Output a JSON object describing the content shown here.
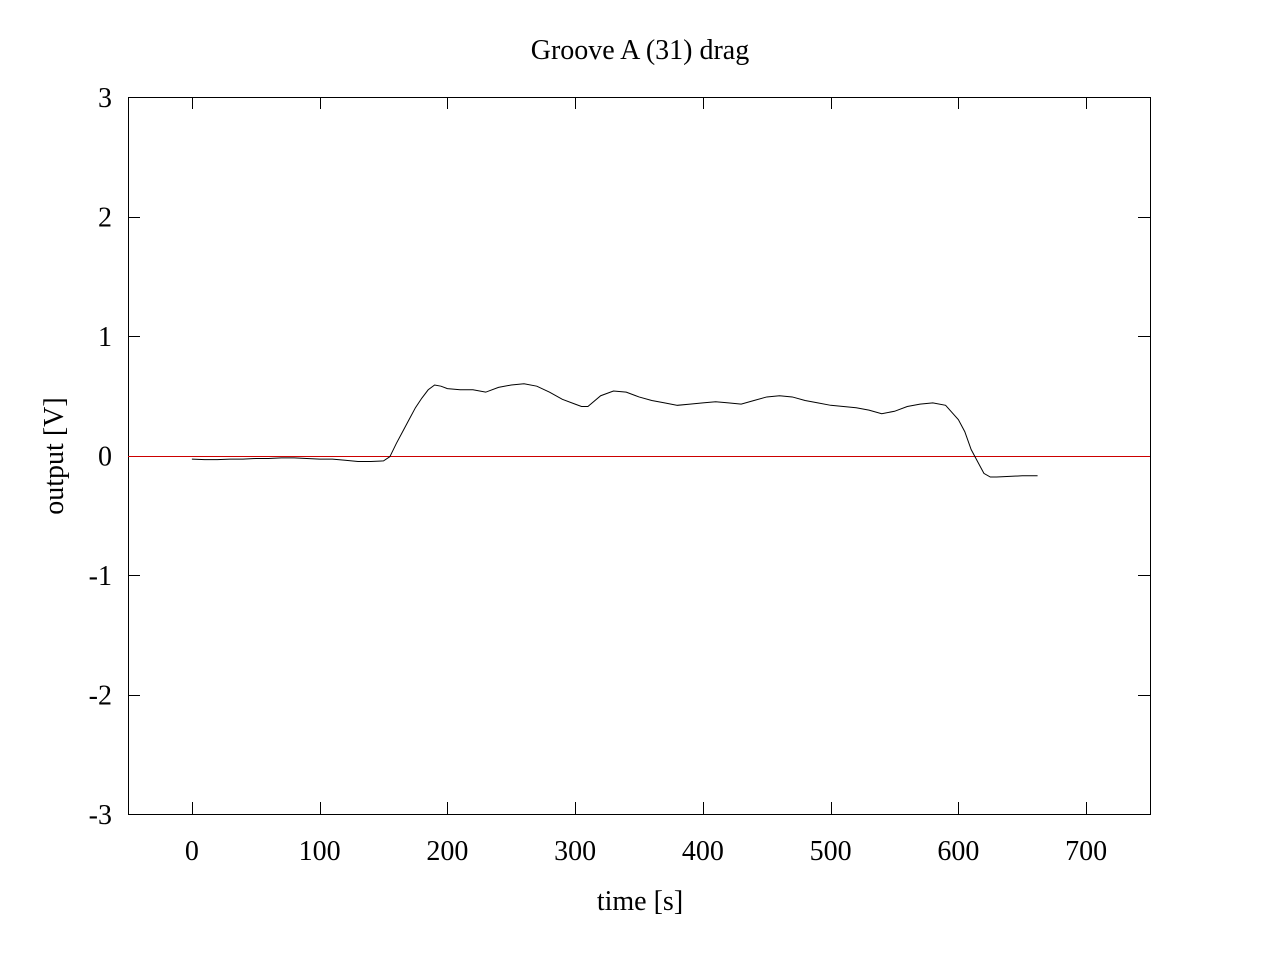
{
  "chart_data": {
    "type": "line",
    "title": "Groove A (31) drag",
    "xlabel": "time [s]",
    "ylabel": "output [V]",
    "xlim": [
      -50,
      750
    ],
    "ylim": [
      -3,
      3
    ],
    "x_ticks": [
      0,
      100,
      200,
      300,
      400,
      500,
      600,
      700
    ],
    "y_ticks": [
      -3,
      -2,
      -1,
      0,
      1,
      2,
      3
    ],
    "grid": false,
    "legend": "none",
    "reference_line": {
      "y": 0,
      "color": "#cc0000"
    },
    "series": [
      {
        "color": "#000000",
        "points": [
          [
            0,
            -0.03
          ],
          [
            10,
            -0.035
          ],
          [
            20,
            -0.035
          ],
          [
            30,
            -0.03
          ],
          [
            40,
            -0.03
          ],
          [
            50,
            -0.025
          ],
          [
            60,
            -0.025
          ],
          [
            70,
            -0.02
          ],
          [
            80,
            -0.02
          ],
          [
            90,
            -0.025
          ],
          [
            100,
            -0.03
          ],
          [
            110,
            -0.03
          ],
          [
            120,
            -0.04
          ],
          [
            130,
            -0.05
          ],
          [
            140,
            -0.05
          ],
          [
            150,
            -0.045
          ],
          [
            155,
            -0.01
          ],
          [
            160,
            0.1
          ],
          [
            165,
            0.2
          ],
          [
            170,
            0.3
          ],
          [
            175,
            0.4
          ],
          [
            180,
            0.48
          ],
          [
            185,
            0.55
          ],
          [
            190,
            0.59
          ],
          [
            195,
            0.58
          ],
          [
            200,
            0.56
          ],
          [
            210,
            0.55
          ],
          [
            220,
            0.55
          ],
          [
            230,
            0.53
          ],
          [
            240,
            0.57
          ],
          [
            250,
            0.59
          ],
          [
            260,
            0.6
          ],
          [
            270,
            0.58
          ],
          [
            280,
            0.53
          ],
          [
            290,
            0.47
          ],
          [
            300,
            0.43
          ],
          [
            305,
            0.41
          ],
          [
            310,
            0.41
          ],
          [
            320,
            0.5
          ],
          [
            330,
            0.54
          ],
          [
            340,
            0.53
          ],
          [
            350,
            0.49
          ],
          [
            360,
            0.46
          ],
          [
            370,
            0.44
          ],
          [
            380,
            0.42
          ],
          [
            390,
            0.43
          ],
          [
            400,
            0.44
          ],
          [
            410,
            0.45
          ],
          [
            420,
            0.44
          ],
          [
            430,
            0.43
          ],
          [
            440,
            0.46
          ],
          [
            450,
            0.49
          ],
          [
            460,
            0.5
          ],
          [
            470,
            0.49
          ],
          [
            480,
            0.46
          ],
          [
            490,
            0.44
          ],
          [
            500,
            0.42
          ],
          [
            510,
            0.41
          ],
          [
            520,
            0.4
          ],
          [
            530,
            0.38
          ],
          [
            540,
            0.35
          ],
          [
            550,
            0.37
          ],
          [
            560,
            0.41
          ],
          [
            570,
            0.43
          ],
          [
            580,
            0.44
          ],
          [
            590,
            0.42
          ],
          [
            600,
            0.3
          ],
          [
            605,
            0.2
          ],
          [
            610,
            0.05
          ],
          [
            615,
            -0.05
          ],
          [
            620,
            -0.15
          ],
          [
            625,
            -0.18
          ],
          [
            630,
            -0.18
          ],
          [
            640,
            -0.175
          ],
          [
            650,
            -0.17
          ],
          [
            662,
            -0.17
          ]
        ]
      }
    ]
  }
}
